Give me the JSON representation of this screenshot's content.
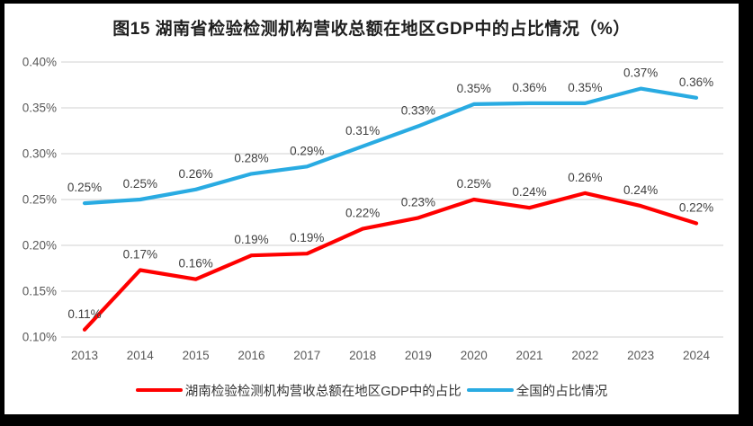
{
  "title": "图15 湖南省检验检测机构营收总额在地区GDP中的占比情况（%）",
  "chart_data": {
    "type": "line",
    "x": [
      "2013",
      "2014",
      "2015",
      "2016",
      "2017",
      "2018",
      "2019",
      "2020",
      "2021",
      "2022",
      "2023",
      "2024"
    ],
    "ylim": [
      0.1,
      0.4
    ],
    "yticks": [
      "0.40%",
      "0.35%",
      "0.30%",
      "0.25%",
      "0.20%",
      "0.15%",
      "0.10%"
    ],
    "grid": true,
    "legend_position": "bottom",
    "series": [
      {
        "name": "湖南检验检测机构营收总额在地区GDP中的占比",
        "color": "#FF0000",
        "values": [
          0.108,
          0.173,
          0.163,
          0.189,
          0.191,
          0.218,
          0.23,
          0.25,
          0.241,
          0.257,
          0.243,
          0.224
        ],
        "labels": [
          "0.11%",
          "0.17%",
          "0.16%",
          "0.19%",
          "0.19%",
          "0.22%",
          "0.23%",
          "0.25%",
          "0.24%",
          "0.26%",
          "0.24%",
          "0.22%"
        ]
      },
      {
        "name": "全国的占比情况",
        "color": "#29ABE2",
        "values": [
          0.246,
          0.25,
          0.261,
          0.278,
          0.286,
          0.308,
          0.33,
          0.354,
          0.355,
          0.355,
          0.371,
          0.361
        ],
        "labels": [
          "0.25%",
          "0.25%",
          "0.26%",
          "0.28%",
          "0.29%",
          "0.31%",
          "0.33%",
          "0.35%",
          "0.36%",
          "0.35%",
          "0.37%",
          "0.36%"
        ]
      }
    ]
  },
  "colors": {
    "background": "#FFFFFF",
    "frame": "#000000",
    "gridline": "#D9D9D9",
    "axis_text": "#595959",
    "label_text": "#404040"
  }
}
